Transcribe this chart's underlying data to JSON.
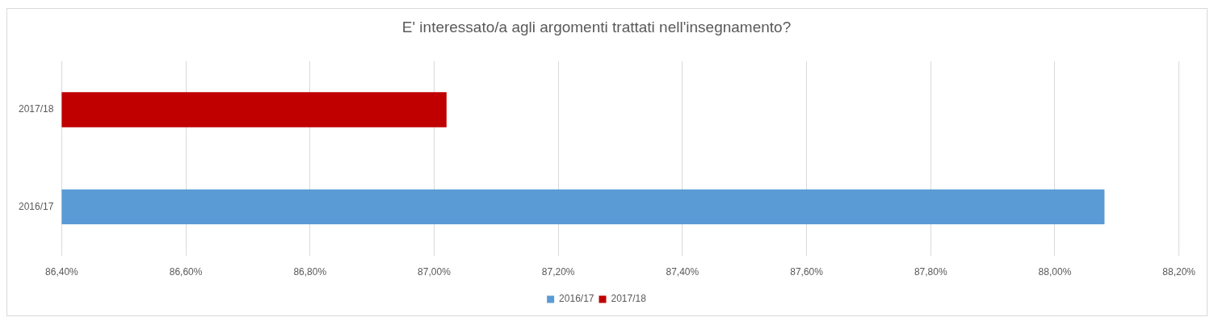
{
  "chart_data": {
    "type": "bar",
    "orientation": "horizontal",
    "title": "E' interessato/a agli argomenti trattati nell'insegnamento?",
    "categories": [
      "2017/18",
      "2016/17"
    ],
    "series": [
      {
        "name": "2016/17",
        "color": "#5b9bd5",
        "values": [
          null,
          88.08
        ]
      },
      {
        "name": "2017/18",
        "color": "#c00000",
        "values": [
          87.02,
          null
        ]
      }
    ],
    "xlim": [
      86.4,
      88.2
    ],
    "xticks": [
      {
        "value": 86.4,
        "label": "86,40%"
      },
      {
        "value": 86.6,
        "label": "86,60%"
      },
      {
        "value": 86.8,
        "label": "86,80%"
      },
      {
        "value": 87.0,
        "label": "87,00%"
      },
      {
        "value": 87.2,
        "label": "87,20%"
      },
      {
        "value": 87.4,
        "label": "87,40%"
      },
      {
        "value": 87.6,
        "label": "87,60%"
      },
      {
        "value": 87.8,
        "label": "87,80%"
      },
      {
        "value": 88.0,
        "label": "88,00%"
      },
      {
        "value": 88.2,
        "label": "88,20%"
      }
    ],
    "grid": "x",
    "legend": "bottom"
  }
}
